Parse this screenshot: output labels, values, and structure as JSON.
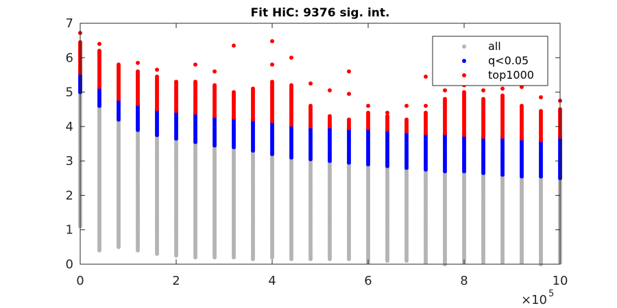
{
  "chart_data": {
    "type": "scatter",
    "title": "Fit HiC: 9376 sig. int.",
    "xlabel": "",
    "ylabel": "",
    "x_multiplier_label": "×10",
    "x_multiplier_exponent": "5",
    "xlim": [
      0,
      1000000
    ],
    "ylim": [
      0,
      7
    ],
    "xticks": [
      0,
      200000,
      400000,
      600000,
      800000,
      1000000
    ],
    "xtick_labels": [
      "0",
      "2",
      "4",
      "6",
      "8",
      "10"
    ],
    "yticks": [
      0,
      1,
      2,
      3,
      4,
      5,
      6,
      7
    ],
    "ytick_labels": [
      "0",
      "1",
      "2",
      "3",
      "4",
      "5",
      "6",
      "7"
    ],
    "grid": false,
    "legend_position": "top-right",
    "series": [
      {
        "name": "all",
        "color": "#b4b4b4"
      },
      {
        "name": "q<0.05",
        "color": "#0000ff"
      },
      {
        "name": "top1000",
        "color": "#ff0000"
      }
    ],
    "bins": [
      {
        "x": 0,
        "all_min": 1.1,
        "all_max": 5.0,
        "q_min": 5.0,
        "q_max": 5.55,
        "top_min": 5.55,
        "top_max": 6.45,
        "top_out": [
          6.72
        ]
      },
      {
        "x": 40000,
        "all_min": 0.4,
        "all_max": 4.6,
        "q_min": 4.6,
        "q_max": 5.15,
        "top_min": 5.15,
        "top_max": 6.2,
        "top_out": [
          6.4
        ]
      },
      {
        "x": 80000,
        "all_min": 0.5,
        "all_max": 4.2,
        "q_min": 4.2,
        "q_max": 4.8,
        "top_min": 4.8,
        "top_max": 5.8,
        "top_out": []
      },
      {
        "x": 120000,
        "all_min": 0.4,
        "all_max": 3.9,
        "q_min": 3.9,
        "q_max": 4.65,
        "top_min": 4.65,
        "top_max": 5.6,
        "top_out": [
          5.85
        ]
      },
      {
        "x": 160000,
        "all_min": 0.3,
        "all_max": 3.75,
        "q_min": 3.75,
        "q_max": 4.5,
        "top_min": 4.5,
        "top_max": 5.45,
        "top_out": [
          5.65
        ]
      },
      {
        "x": 200000,
        "all_min": 0.25,
        "all_max": 3.65,
        "q_min": 3.65,
        "q_max": 4.45,
        "top_min": 4.45,
        "top_max": 5.3,
        "top_out": []
      },
      {
        "x": 240000,
        "all_min": 0.2,
        "all_max": 3.55,
        "q_min": 3.55,
        "q_max": 4.4,
        "top_min": 4.4,
        "top_max": 5.3,
        "top_out": [
          5.8
        ]
      },
      {
        "x": 280000,
        "all_min": 0.2,
        "all_max": 3.45,
        "q_min": 3.45,
        "q_max": 4.3,
        "top_min": 4.3,
        "top_max": 5.2,
        "top_out": [
          5.6
        ]
      },
      {
        "x": 320000,
        "all_min": 0.2,
        "all_max": 3.4,
        "q_min": 3.4,
        "q_max": 4.25,
        "top_min": 4.25,
        "top_max": 5.0,
        "top_out": [
          6.35
        ]
      },
      {
        "x": 360000,
        "all_min": 0.15,
        "all_max": 3.3,
        "q_min": 3.3,
        "q_max": 4.2,
        "top_min": 4.2,
        "top_max": 5.1,
        "top_out": []
      },
      {
        "x": 400000,
        "all_min": 0.2,
        "all_max": 3.2,
        "q_min": 3.2,
        "q_max": 4.15,
        "top_min": 4.15,
        "top_max": 5.3,
        "top_out": [
          5.8,
          6.48
        ]
      },
      {
        "x": 440000,
        "all_min": 0.15,
        "all_max": 3.1,
        "q_min": 3.1,
        "q_max": 4.05,
        "top_min": 4.05,
        "top_max": 5.2,
        "top_out": [
          6.0
        ]
      },
      {
        "x": 480000,
        "all_min": 0.15,
        "all_max": 3.05,
        "q_min": 3.05,
        "q_max": 4.0,
        "top_min": 4.0,
        "top_max": 4.6,
        "top_out": [
          5.25
        ]
      },
      {
        "x": 520000,
        "all_min": 0.15,
        "all_max": 3.0,
        "q_min": 3.0,
        "q_max": 4.0,
        "top_min": 4.0,
        "top_max": 4.3,
        "top_out": [
          5.05
        ]
      },
      {
        "x": 560000,
        "all_min": 0.15,
        "all_max": 2.95,
        "q_min": 2.95,
        "q_max": 3.95,
        "top_min": 3.95,
        "top_max": 4.2,
        "top_out": [
          4.95,
          5.6
        ]
      },
      {
        "x": 600000,
        "all_min": 0.05,
        "all_max": 2.9,
        "q_min": 2.9,
        "q_max": 3.95,
        "top_min": 3.95,
        "top_max": 4.4,
        "top_out": [
          4.6
        ]
      },
      {
        "x": 640000,
        "all_min": 0.1,
        "all_max": 2.85,
        "q_min": 2.85,
        "q_max": 3.9,
        "top_min": 3.9,
        "top_max": 4.3,
        "top_out": [
          4.4
        ]
      },
      {
        "x": 680000,
        "all_min": 0.1,
        "all_max": 2.8,
        "q_min": 2.8,
        "q_max": 3.85,
        "top_min": 3.85,
        "top_max": 4.2,
        "top_out": [
          4.6
        ]
      },
      {
        "x": 720000,
        "all_min": 0.05,
        "all_max": 2.75,
        "q_min": 2.75,
        "q_max": 3.8,
        "top_min": 3.8,
        "top_max": 4.4,
        "top_out": [
          4.6,
          5.45
        ]
      },
      {
        "x": 760000,
        "all_min": 0.0,
        "all_max": 2.7,
        "q_min": 2.7,
        "q_max": 3.8,
        "top_min": 3.8,
        "top_max": 4.8,
        "top_out": [
          5.05
        ]
      },
      {
        "x": 800000,
        "all_min": 0.05,
        "all_max": 2.7,
        "q_min": 2.7,
        "q_max": 3.75,
        "top_min": 3.75,
        "top_max": 5.0,
        "top_out": [
          5.2
        ]
      },
      {
        "x": 840000,
        "all_min": 0.05,
        "all_max": 2.65,
        "q_min": 2.65,
        "q_max": 3.7,
        "top_min": 3.7,
        "top_max": 4.8,
        "top_out": [
          5.05
        ]
      },
      {
        "x": 880000,
        "all_min": 0.05,
        "all_max": 2.6,
        "q_min": 2.6,
        "q_max": 3.7,
        "top_min": 3.7,
        "top_max": 4.9,
        "top_out": [
          5.1
        ]
      },
      {
        "x": 920000,
        "all_min": 0.05,
        "all_max": 2.55,
        "q_min": 2.55,
        "q_max": 3.65,
        "top_min": 3.65,
        "top_max": 4.6,
        "top_out": [
          5.15
        ]
      },
      {
        "x": 960000,
        "all_min": 0.0,
        "all_max": 2.55,
        "q_min": 2.55,
        "q_max": 3.6,
        "top_min": 3.6,
        "top_max": 4.45,
        "top_out": [
          4.85
        ]
      },
      {
        "x": 1000000,
        "all_min": 0.05,
        "all_max": 2.5,
        "q_min": 2.5,
        "q_max": 3.7,
        "top_min": 3.7,
        "top_max": 4.5,
        "top_out": [
          4.75
        ]
      }
    ]
  }
}
